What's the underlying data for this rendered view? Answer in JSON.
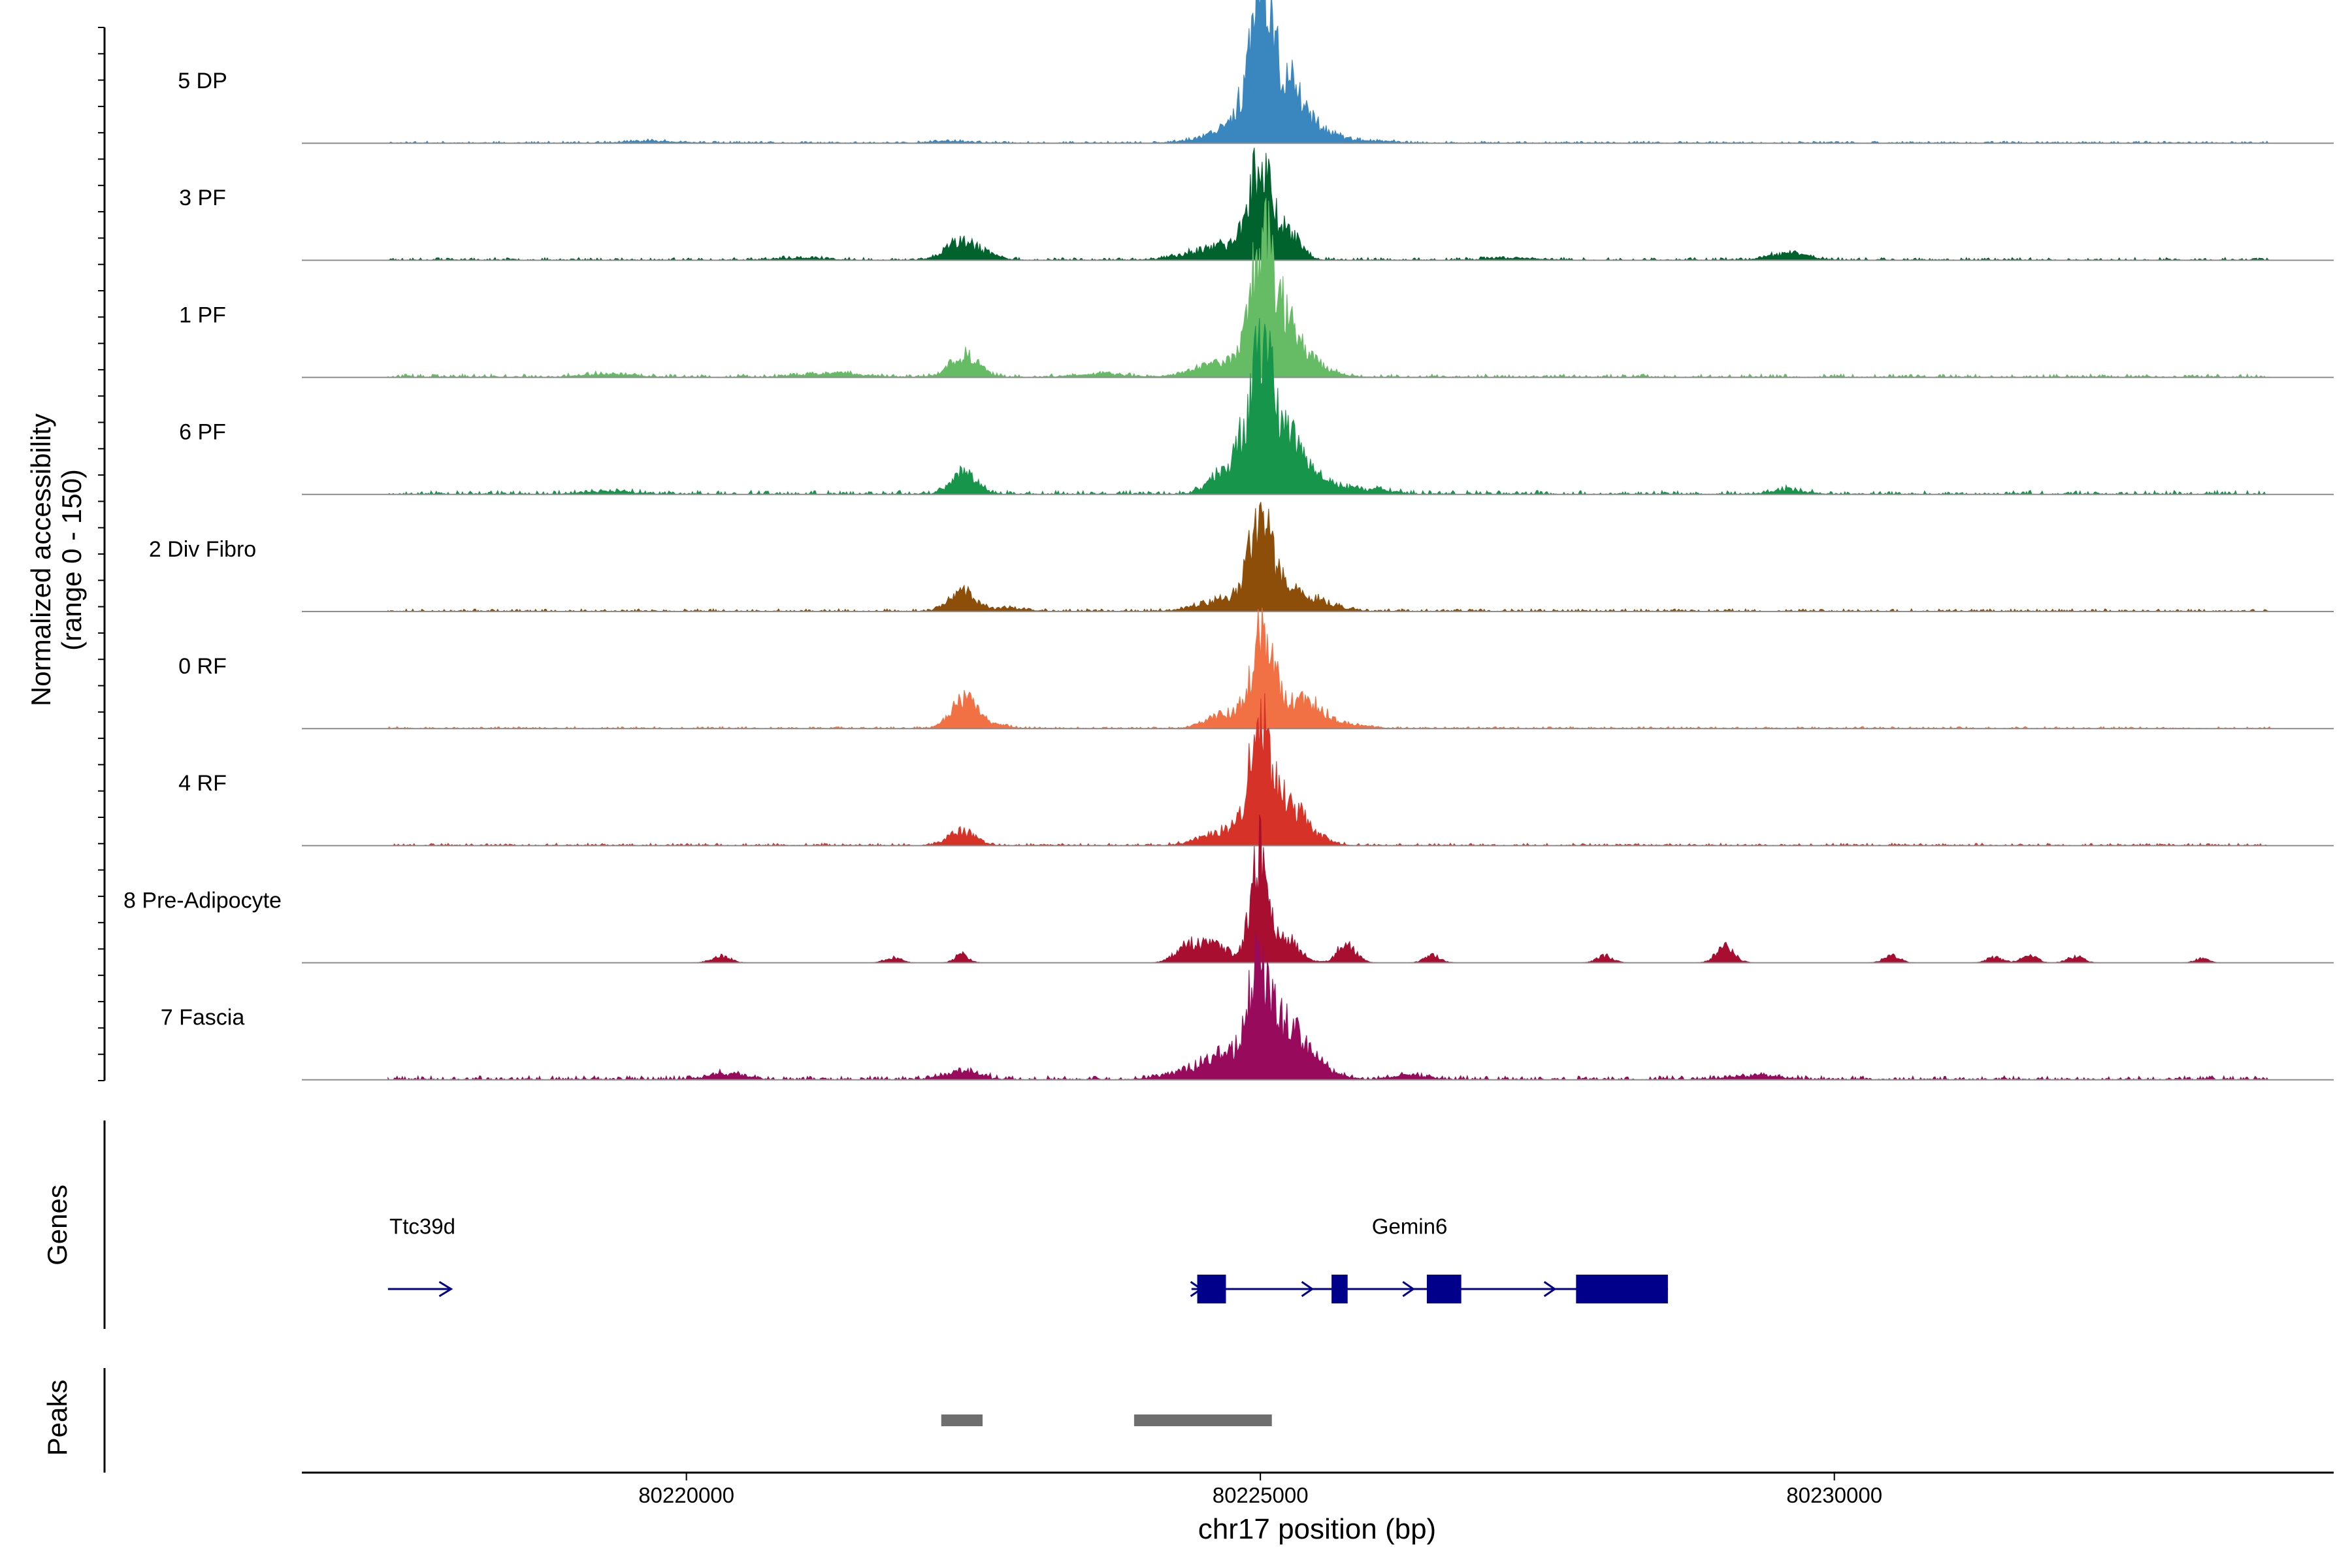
{
  "chart_data": {
    "type": "area",
    "title": "",
    "region": "chr17",
    "xlabel": "chr17 position (bp)",
    "ylabel_line1": "Normalized accessibility",
    "ylabel_line2": "(range 0 - 150)",
    "xlim": [
      80216650,
      80234350
    ],
    "ylim": [
      0,
      150
    ],
    "x_ticks": [
      {
        "value": 80220000,
        "label": "80220000"
      },
      {
        "value": 80225000,
        "label": "80225000"
      },
      {
        "value": 80230000,
        "label": "80230000"
      }
    ],
    "track_start": 80217400,
    "track_end": 80233800,
    "series": [
      {
        "name": "5 DP",
        "color": "#3A87C0",
        "background": 1.5,
        "noise_seed": 11,
        "peaks": [
          [
            80225000,
            150,
            90
          ],
          [
            80225230,
            58,
            120
          ],
          [
            80224850,
            28,
            160
          ],
          [
            80224600,
            8,
            200
          ],
          [
            80225550,
            14,
            150
          ],
          [
            80225150,
            40,
            220
          ],
          [
            80222300,
            3,
            150
          ],
          [
            80219700,
            3,
            200
          ],
          [
            80226000,
            3,
            150
          ]
        ]
      },
      {
        "name": "3 PF",
        "color": "#00622C",
        "background": 2,
        "noise_seed": 23,
        "peaks": [
          [
            80225000,
            135,
            100
          ],
          [
            80225270,
            35,
            90
          ],
          [
            80224700,
            20,
            280
          ],
          [
            80222380,
            25,
            120
          ],
          [
            80222600,
            8,
            120
          ],
          [
            80229600,
            10,
            160
          ],
          [
            80221000,
            3,
            200
          ],
          [
            80227200,
            3,
            200
          ]
        ]
      },
      {
        "name": "1 PF",
        "color": "#66BC65",
        "background": 2.5,
        "noise_seed": 37,
        "peaks": [
          [
            80225000,
            143,
            100
          ],
          [
            80225150,
            75,
            150
          ],
          [
            80225350,
            25,
            200
          ],
          [
            80224650,
            20,
            220
          ],
          [
            80222420,
            32,
            120
          ],
          [
            80223600,
            5,
            200
          ],
          [
            80221300,
            5,
            250
          ],
          [
            80219300,
            4,
            200
          ]
        ]
      },
      {
        "name": "6 PF",
        "color": "#17954A",
        "background": 3,
        "noise_seed": 53,
        "peaks": [
          [
            80225000,
            150,
            110
          ],
          [
            80225200,
            70,
            160
          ],
          [
            80224750,
            40,
            150
          ],
          [
            80225450,
            20,
            220
          ],
          [
            80222420,
            30,
            110
          ],
          [
            80226000,
            6,
            150
          ],
          [
            80229600,
            6,
            150
          ],
          [
            80219300,
            4,
            200
          ]
        ]
      },
      {
        "name": "2 Div Fibro",
        "color": "#8C4E09",
        "background": 2,
        "noise_seed": 71,
        "peaks": [
          [
            80225000,
            115,
            100
          ],
          [
            80225250,
            30,
            200
          ],
          [
            80224700,
            18,
            220
          ],
          [
            80222400,
            30,
            110
          ],
          [
            80222800,
            4,
            150
          ],
          [
            80225600,
            6,
            150
          ]
        ]
      },
      {
        "name": "0 RF",
        "color": "#F17144",
        "background": 1.5,
        "noise_seed": 89,
        "peaks": [
          [
            80225020,
            135,
            100
          ],
          [
            80225300,
            32,
            120
          ],
          [
            80225500,
            24,
            110
          ],
          [
            80224700,
            22,
            150
          ],
          [
            80222420,
            45,
            110
          ],
          [
            80222700,
            6,
            100
          ],
          [
            80225800,
            5,
            150
          ]
        ]
      },
      {
        "name": "4 RF",
        "color": "#D73227",
        "background": 1.8,
        "noise_seed": 101,
        "peaks": [
          [
            80225000,
            140,
            100
          ],
          [
            80225200,
            50,
            150
          ],
          [
            80225400,
            16,
            150
          ],
          [
            80224800,
            20,
            150
          ],
          [
            80224550,
            10,
            150
          ],
          [
            80222400,
            22,
            110
          ]
        ]
      },
      {
        "name": "8 Pre-Adipocyte",
        "color": "#A80E30",
        "background": 0,
        "noise_seed": 131,
        "peaks": [
          [
            80224980,
            155,
            70
          ],
          [
            80225200,
            40,
            120
          ],
          [
            80224600,
            25,
            150
          ],
          [
            80224350,
            20,
            100
          ],
          [
            80225750,
            28,
            80
          ],
          [
            80229050,
            22,
            80
          ],
          [
            80222400,
            12,
            60
          ],
          [
            80220300,
            10,
            80
          ],
          [
            80221800,
            8,
            70
          ],
          [
            80226500,
            10,
            70
          ],
          [
            80228000,
            10,
            70
          ],
          [
            80230500,
            10,
            70
          ],
          [
            80231700,
            10,
            70
          ],
          [
            80231400,
            8,
            70
          ],
          [
            80232100,
            9,
            70
          ],
          [
            80233200,
            6,
            60
          ]
        ]
      },
      {
        "name": "7 Fascia",
        "color": "#980A5C",
        "background": 3,
        "noise_seed": 149,
        "peaks": [
          [
            80224980,
            150,
            90
          ],
          [
            80225200,
            60,
            140
          ],
          [
            80225400,
            28,
            180
          ],
          [
            80224700,
            35,
            150
          ],
          [
            80224400,
            14,
            200
          ],
          [
            80222400,
            12,
            150
          ],
          [
            80220350,
            8,
            150
          ],
          [
            80229300,
            6,
            200
          ],
          [
            80226300,
            6,
            150
          ]
        ]
      }
    ],
    "genes": [
      {
        "name": "Ttc39d",
        "start": 80217400,
        "end": 80217950,
        "strand": "+",
        "label_x": 80217700,
        "exons": []
      },
      {
        "name": "Gemin6",
        "start": 80224400,
        "end": 80228550,
        "strand": "+",
        "label_x": 80226300,
        "exons": [
          [
            80224450,
            80224700
          ],
          [
            80225620,
            80225760
          ],
          [
            80226450,
            80226750
          ],
          [
            80227750,
            80228550
          ]
        ]
      }
    ],
    "peaks_track": [
      {
        "start": 80222220,
        "end": 80222580
      },
      {
        "start": 80223900,
        "end": 80225100
      }
    ],
    "track_label_genes": "Genes",
    "track_label_peaks": "Peaks",
    "colors": {
      "gene": "#00008B",
      "peak": "#6E6E6E",
      "baseline": "#8C8C8C"
    }
  }
}
